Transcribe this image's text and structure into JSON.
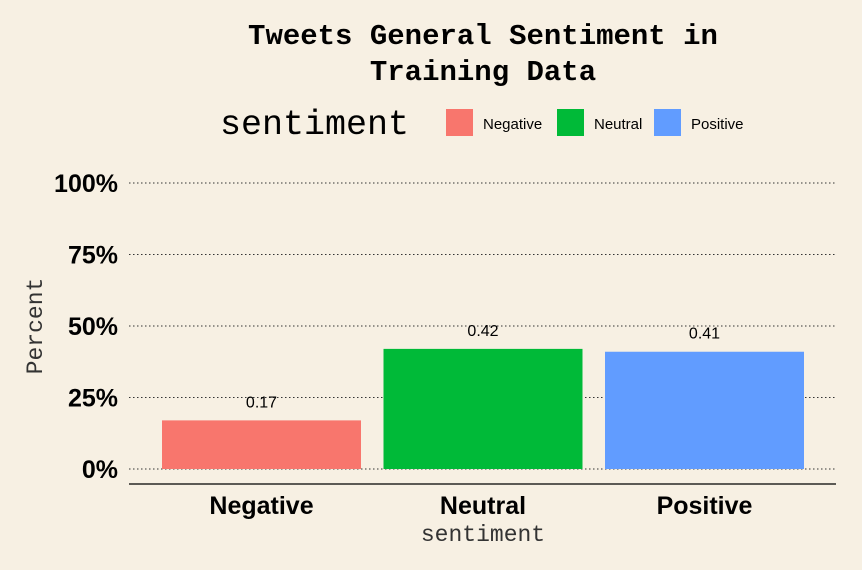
{
  "chart_data": {
    "type": "bar",
    "title_lines": [
      "Tweets General Sentiment in",
      "Training Data"
    ],
    "xlabel": "sentiment",
    "ylabel": "Percent",
    "categories": [
      "Negative",
      "Neutral",
      "Positive"
    ],
    "values": [
      0.17,
      0.42,
      0.41
    ],
    "data_labels": [
      "0.17",
      "0.42",
      "0.41"
    ],
    "colors": [
      "#f8766d",
      "#00ba38",
      "#619cff"
    ],
    "ylim": [
      0,
      1
    ],
    "yticks": [
      0,
      0.25,
      0.5,
      0.75,
      1
    ],
    "ytick_labels": [
      "0%",
      "25%",
      "50%",
      "75%",
      "100%"
    ],
    "grid": "horizontal dotted",
    "legend": {
      "title": "sentiment",
      "position": "top",
      "entries": [
        "Negative",
        "Neutral",
        "Positive"
      ]
    }
  }
}
